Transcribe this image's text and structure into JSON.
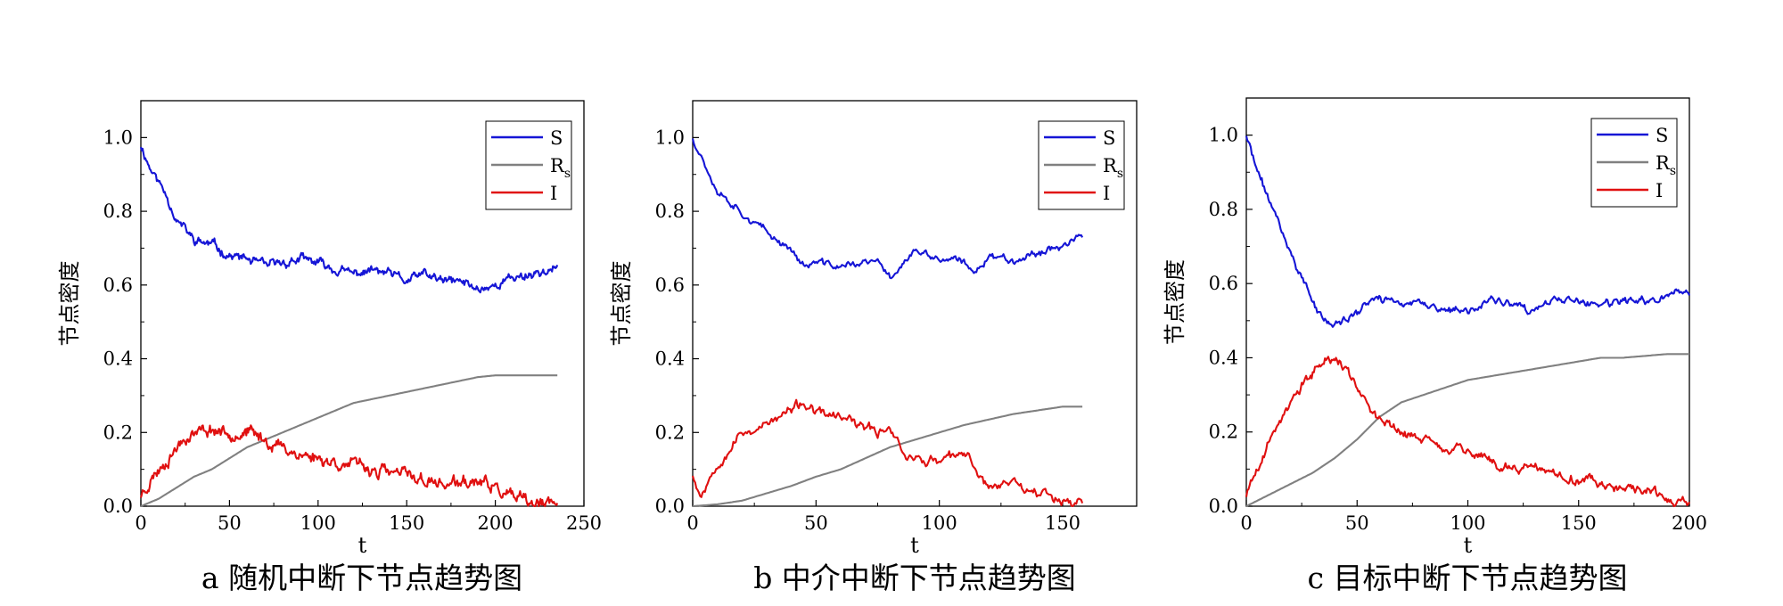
{
  "figure": {
    "panels_count": 3
  },
  "chart_data": [
    {
      "type": "line",
      "caption": "a 随机中断下节点趋势图",
      "xlabel": "t",
      "ylabel": "节点密度",
      "xlim": [
        0,
        250
      ],
      "ylim": [
        0,
        1.1
      ],
      "xticks": [
        0,
        50,
        100,
        150,
        200,
        250
      ],
      "xtick_labels": [
        "0",
        "50",
        "100",
        "150",
        "200",
        "250"
      ],
      "yticks": [
        0,
        0.2,
        0.4,
        0.6,
        0.8,
        1.0
      ],
      "ytick_labels": [
        "0.0",
        "0.2",
        "0.4",
        "0.6",
        "0.8",
        "1.0"
      ],
      "legend": {
        "position": "top-right"
      },
      "series": [
        {
          "name": "S",
          "color": "#1515d6",
          "jitter": 0.012,
          "seed": 11,
          "x": [
            0,
            5,
            10,
            15,
            20,
            25,
            30,
            40,
            50,
            60,
            70,
            80,
            90,
            100,
            110,
            120,
            130,
            140,
            150,
            160,
            170,
            180,
            190,
            200,
            210,
            220,
            235
          ],
          "y": [
            0.98,
            0.92,
            0.88,
            0.84,
            0.78,
            0.75,
            0.72,
            0.71,
            0.68,
            0.67,
            0.65,
            0.66,
            0.67,
            0.66,
            0.64,
            0.63,
            0.64,
            0.63,
            0.61,
            0.63,
            0.61,
            0.61,
            0.59,
            0.6,
            0.62,
            0.63,
            0.645
          ]
        },
        {
          "name": "R",
          "subscript": "s",
          "color": "#808080",
          "jitter": 0,
          "seed": 0,
          "x": [
            0,
            10,
            20,
            30,
            40,
            50,
            60,
            70,
            80,
            90,
            100,
            110,
            120,
            130,
            140,
            150,
            160,
            170,
            180,
            190,
            200,
            210,
            220,
            235
          ],
          "y": [
            0,
            0.02,
            0.05,
            0.08,
            0.1,
            0.13,
            0.16,
            0.18,
            0.2,
            0.22,
            0.24,
            0.26,
            0.28,
            0.29,
            0.3,
            0.31,
            0.32,
            0.33,
            0.34,
            0.35,
            0.355,
            0.355,
            0.355,
            0.355
          ]
        },
        {
          "name": "I",
          "color": "#e01010",
          "jitter": 0.016,
          "seed": 23,
          "x": [
            0,
            5,
            10,
            15,
            20,
            25,
            30,
            40,
            50,
            60,
            70,
            80,
            90,
            100,
            110,
            120,
            130,
            140,
            150,
            160,
            170,
            180,
            190,
            200,
            210,
            220,
            235
          ],
          "y": [
            0.03,
            0.07,
            0.1,
            0.13,
            0.16,
            0.19,
            0.2,
            0.21,
            0.2,
            0.2,
            0.18,
            0.16,
            0.14,
            0.13,
            0.12,
            0.11,
            0.1,
            0.09,
            0.085,
            0.07,
            0.06,
            0.06,
            0.065,
            0.05,
            0.02,
            0.005,
            0.002
          ]
        }
      ]
    },
    {
      "type": "line",
      "caption": "b 中介中断下节点趋势图",
      "xlabel": "t",
      "ylabel": "节点密度",
      "xlim": [
        0,
        180
      ],
      "ylim": [
        0,
        1.1
      ],
      "xticks": [
        0,
        50,
        100,
        150
      ],
      "xtick_labels": [
        "0",
        "50",
        "100",
        "150"
      ],
      "yticks": [
        0,
        0.2,
        0.4,
        0.6,
        0.8,
        1.0
      ],
      "ytick_labels": [
        "0.0",
        "0.2",
        "0.4",
        "0.6",
        "0.8",
        "1.0"
      ],
      "legend": {
        "position": "top-right"
      },
      "series": [
        {
          "name": "S",
          "color": "#1515d6",
          "jitter": 0.01,
          "seed": 37,
          "x": [
            0,
            5,
            10,
            20,
            30,
            40,
            45,
            50,
            60,
            70,
            75,
            80,
            85,
            90,
            100,
            110,
            113,
            120,
            130,
            140,
            150,
            158
          ],
          "y": [
            1.0,
            0.93,
            0.86,
            0.8,
            0.74,
            0.7,
            0.65,
            0.66,
            0.65,
            0.66,
            0.66,
            0.62,
            0.66,
            0.69,
            0.67,
            0.66,
            0.63,
            0.68,
            0.67,
            0.69,
            0.71,
            0.73
          ]
        },
        {
          "name": "R",
          "subscript": "s",
          "color": "#808080",
          "jitter": 0,
          "seed": 0,
          "x": [
            0,
            10,
            20,
            30,
            40,
            50,
            60,
            70,
            80,
            90,
            100,
            110,
            120,
            130,
            140,
            150,
            158
          ],
          "y": [
            0,
            0.005,
            0.015,
            0.035,
            0.055,
            0.08,
            0.1,
            0.13,
            0.16,
            0.18,
            0.2,
            0.22,
            0.235,
            0.25,
            0.26,
            0.27,
            0.27
          ]
        },
        {
          "name": "I",
          "color": "#e01010",
          "jitter": 0.013,
          "seed": 53,
          "x": [
            0,
            3,
            5,
            10,
            15,
            20,
            30,
            40,
            45,
            50,
            60,
            70,
            75,
            80,
            85,
            90,
            100,
            110,
            113,
            120,
            130,
            140,
            150,
            158
          ],
          "y": [
            0.09,
            0.03,
            0.05,
            0.12,
            0.16,
            0.2,
            0.22,
            0.26,
            0.28,
            0.25,
            0.24,
            0.21,
            0.2,
            0.22,
            0.15,
            0.13,
            0.12,
            0.14,
            0.12,
            0.05,
            0.07,
            0.04,
            0.02,
            0.01
          ]
        }
      ]
    },
    {
      "type": "line",
      "caption": "c 目标中断下节点趋势图",
      "xlabel": "t",
      "ylabel": "节点密度",
      "xlim": [
        0,
        200
      ],
      "ylim": [
        0,
        1.1
      ],
      "xticks": [
        0,
        50,
        100,
        150,
        200
      ],
      "xtick_labels": [
        "0",
        "50",
        "100",
        "150",
        "200"
      ],
      "yticks": [
        0,
        0.2,
        0.4,
        0.6,
        0.8,
        1.0
      ],
      "ytick_labels": [
        "0.0",
        "0.2",
        "0.4",
        "0.6",
        "0.8",
        "1.0"
      ],
      "legend": {
        "position": "top-right"
      },
      "series": [
        {
          "name": "S",
          "color": "#1515d6",
          "jitter": 0.01,
          "seed": 71,
          "x": [
            0,
            5,
            10,
            15,
            20,
            25,
            30,
            35,
            40,
            45,
            50,
            55,
            60,
            70,
            80,
            90,
            100,
            110,
            120,
            130,
            140,
            150,
            160,
            170,
            180,
            190,
            200
          ],
          "y": [
            1.0,
            0.9,
            0.83,
            0.76,
            0.68,
            0.62,
            0.55,
            0.5,
            0.49,
            0.5,
            0.52,
            0.55,
            0.56,
            0.55,
            0.54,
            0.53,
            0.52,
            0.56,
            0.54,
            0.52,
            0.56,
            0.55,
            0.54,
            0.55,
            0.55,
            0.57,
            0.58
          ]
        },
        {
          "name": "R",
          "subscript": "s",
          "color": "#808080",
          "jitter": 0,
          "seed": 0,
          "x": [
            0,
            10,
            20,
            30,
            40,
            50,
            60,
            70,
            80,
            90,
            100,
            110,
            120,
            130,
            140,
            150,
            160,
            170,
            180,
            190,
            200
          ],
          "y": [
            0,
            0.03,
            0.06,
            0.09,
            0.13,
            0.18,
            0.24,
            0.28,
            0.3,
            0.32,
            0.34,
            0.35,
            0.36,
            0.37,
            0.38,
            0.39,
            0.4,
            0.4,
            0.405,
            0.41,
            0.41
          ]
        },
        {
          "name": "I",
          "color": "#e01010",
          "jitter": 0.013,
          "seed": 89,
          "x": [
            0,
            5,
            10,
            15,
            20,
            25,
            30,
            35,
            40,
            45,
            50,
            55,
            60,
            70,
            80,
            90,
            100,
            110,
            120,
            130,
            140,
            150,
            160,
            170,
            180,
            190,
            195,
            200
          ],
          "y": [
            0.03,
            0.1,
            0.17,
            0.23,
            0.28,
            0.32,
            0.36,
            0.4,
            0.4,
            0.37,
            0.33,
            0.27,
            0.23,
            0.2,
            0.18,
            0.16,
            0.15,
            0.12,
            0.1,
            0.1,
            0.09,
            0.07,
            0.06,
            0.05,
            0.04,
            0.02,
            0.01,
            0.01
          ]
        }
      ]
    }
  ]
}
